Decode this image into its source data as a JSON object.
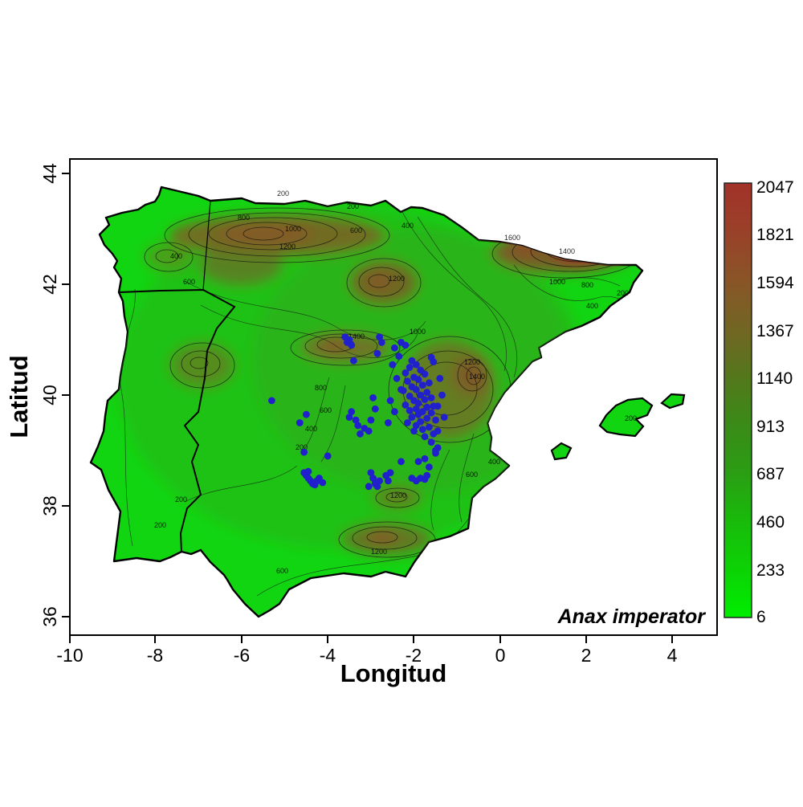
{
  "figure": {
    "species_annotation": "Anax imperator",
    "background_color": "#ffffff",
    "sea_color": "#ffffff"
  },
  "chart_data": {
    "type": "scatter",
    "subtype": "species-occurrence-map-over-elevation-contours",
    "region": "Iberian Peninsula and Balearic Islands",
    "xlabel": "Longitud",
    "ylabel": "Latitud",
    "x_ticks": [
      "-10",
      "-8",
      "-6",
      "-4",
      "-2",
      "0",
      "2",
      "4"
    ],
    "y_ticks": [
      "44",
      "42",
      "40",
      "38",
      "36"
    ],
    "xlim": [
      -10.3,
      5.0
    ],
    "ylim": [
      35.6,
      44.3
    ],
    "grid": "off",
    "annotation": "Anax imperator",
    "colorbar": {
      "tick_labels": [
        "2047",
        "1821",
        "1594",
        "1367",
        "1140",
        "913",
        "687",
        "460",
        "233",
        "6"
      ],
      "min_value": 6,
      "max_value": 2047,
      "top_color": "#a23229",
      "mid_color": "#53781c",
      "bottom_color": "#00ee00",
      "position": "right"
    },
    "contour_label_values": [
      "200",
      "400",
      "600",
      "800",
      "1000",
      "1200",
      "1400",
      "1600"
    ],
    "scatter": {
      "name": "occurrence-points",
      "color": "#2020cc",
      "marker": "filled-circle",
      "points": [
        [
          -2.05,
          40.62
        ],
        [
          -1.95,
          40.55
        ],
        [
          -2.1,
          40.5
        ],
        [
          -1.85,
          40.45
        ],
        [
          -2.2,
          40.4
        ],
        [
          -1.75,
          40.38
        ],
        [
          -2.0,
          40.32
        ],
        [
          -1.9,
          40.28
        ],
        [
          -2.15,
          40.25
        ],
        [
          -1.65,
          40.22
        ],
        [
          -1.8,
          40.18
        ],
        [
          -2.05,
          40.15
        ],
        [
          -1.95,
          40.1
        ],
        [
          -2.25,
          40.08
        ],
        [
          -1.7,
          40.05
        ],
        [
          -1.85,
          40.0
        ],
        [
          -2.1,
          39.98
        ],
        [
          -1.6,
          39.95
        ],
        [
          -1.75,
          39.92
        ],
        [
          -2.0,
          39.9
        ],
        [
          -1.9,
          39.85
        ],
        [
          -2.2,
          39.82
        ],
        [
          -1.55,
          39.8
        ],
        [
          -1.7,
          39.78
        ],
        [
          -1.95,
          39.75
        ],
        [
          -2.1,
          39.72
        ],
        [
          -1.8,
          39.7
        ],
        [
          -1.6,
          39.68
        ],
        [
          -1.9,
          39.65
        ],
        [
          -2.05,
          39.6
        ],
        [
          -1.7,
          39.58
        ],
        [
          -1.5,
          39.55
        ],
        [
          -1.85,
          39.52
        ],
        [
          -2.15,
          39.5
        ],
        [
          -1.95,
          39.45
        ],
        [
          -1.65,
          39.42
        ],
        [
          -1.8,
          39.38
        ],
        [
          -2.0,
          39.35
        ],
        [
          -1.55,
          39.3
        ],
        [
          -1.75,
          39.25
        ],
        [
          -2.45,
          40.85
        ],
        [
          -2.35,
          40.7
        ],
        [
          -2.5,
          40.55
        ],
        [
          -2.4,
          40.3
        ],
        [
          -2.3,
          40.1
        ],
        [
          -2.55,
          39.9
        ],
        [
          -2.45,
          39.7
        ],
        [
          -2.6,
          39.5
        ],
        [
          -1.4,
          40.3
        ],
        [
          -1.35,
          40.0
        ],
        [
          -1.45,
          39.8
        ],
        [
          -1.3,
          39.6
        ],
        [
          -1.45,
          39.35
        ],
        [
          -1.6,
          39.15
        ],
        [
          -1.5,
          39.0
        ],
        [
          -2.3,
          40.95
        ],
        [
          -2.2,
          40.9
        ],
        [
          -1.6,
          40.68
        ],
        [
          -1.55,
          40.6
        ],
        [
          -2.75,
          40.95
        ],
        [
          -2.8,
          41.05
        ],
        [
          -2.85,
          40.75
        ],
        [
          -2.95,
          39.95
        ],
        [
          -2.9,
          39.75
        ],
        [
          -3.0,
          39.55
        ],
        [
          -3.6,
          41.05
        ],
        [
          -3.5,
          41.0
        ],
        [
          -3.55,
          40.95
        ],
        [
          -3.45,
          40.9
        ],
        [
          -3.4,
          40.62
        ],
        [
          -3.45,
          39.7
        ],
        [
          -3.5,
          39.6
        ],
        [
          -3.35,
          39.55
        ],
        [
          -3.3,
          39.45
        ],
        [
          -3.15,
          39.4
        ],
        [
          -3.05,
          39.35
        ],
        [
          -3.25,
          39.3
        ],
        [
          -5.3,
          39.9
        ],
        [
          -4.5,
          39.65
        ],
        [
          -4.65,
          39.5
        ],
        [
          -4.55,
          38.97
        ],
        [
          -4.0,
          38.9
        ],
        [
          -4.55,
          38.6
        ],
        [
          -4.5,
          38.55
        ],
        [
          -4.45,
          38.5
        ],
        [
          -4.4,
          38.45
        ],
        [
          -4.35,
          38.4
        ],
        [
          -4.3,
          38.38
        ],
        [
          -4.25,
          38.45
        ],
        [
          -4.2,
          38.5
        ],
        [
          -4.45,
          38.62
        ],
        [
          -4.12,
          38.42
        ],
        [
          -3.0,
          38.6
        ],
        [
          -2.95,
          38.5
        ],
        [
          -2.9,
          38.4
        ],
        [
          -2.85,
          38.35
        ],
        [
          -2.8,
          38.45
        ],
        [
          -3.05,
          38.35
        ],
        [
          -2.65,
          38.55
        ],
        [
          -2.6,
          38.45
        ],
        [
          -2.55,
          38.6
        ],
        [
          -2.05,
          38.5
        ],
        [
          -1.95,
          38.45
        ],
        [
          -1.85,
          38.5
        ],
        [
          -1.75,
          38.48
        ],
        [
          -1.7,
          38.55
        ],
        [
          -1.65,
          38.7
        ],
        [
          -1.75,
          38.85
        ],
        [
          -1.9,
          38.8
        ],
        [
          -2.3,
          38.8
        ],
        [
          -1.5,
          38.95
        ],
        [
          -1.45,
          39.05
        ]
      ]
    }
  }
}
